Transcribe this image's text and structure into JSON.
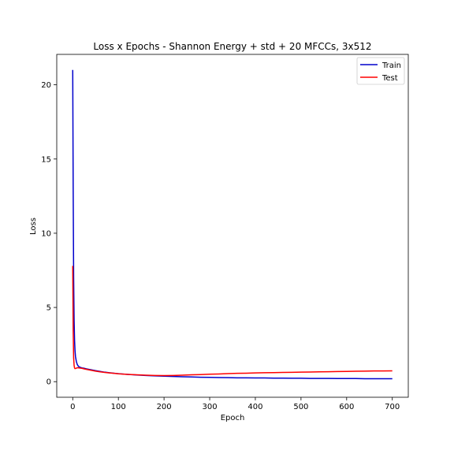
{
  "chart_data": {
    "type": "line",
    "title": "Loss x Epochs - Shannon Energy + std + 20 MFCCs, 3x512",
    "xlabel": "Epoch",
    "ylabel": "Loss",
    "xlim": [
      -35,
      735
    ],
    "ylim": [
      -1.05,
      22.05
    ],
    "xticks": [
      0,
      100,
      200,
      300,
      400,
      500,
      600,
      700
    ],
    "yticks": [
      0,
      5,
      10,
      15,
      20
    ],
    "grid": false,
    "legend": {
      "position": "top-right",
      "entries": [
        "Train",
        "Test"
      ]
    },
    "series": [
      {
        "name": "Train",
        "color": "#0000cc",
        "x": [
          0,
          1,
          2,
          3,
          4,
          5,
          6,
          8,
          10,
          13,
          16,
          20,
          25,
          30,
          40,
          50,
          60,
          70,
          80,
          90,
          100,
          120,
          140,
          160,
          180,
          200,
          220,
          240,
          260,
          280,
          300,
          320,
          340,
          360,
          380,
          400,
          420,
          440,
          460,
          480,
          500,
          520,
          540,
          560,
          580,
          600,
          620,
          640,
          660,
          680,
          700
        ],
        "y": [
          21.0,
          13.0,
          7.0,
          4.2,
          2.8,
          2.1,
          1.7,
          1.35,
          1.15,
          1.02,
          0.97,
          0.93,
          0.9,
          0.86,
          0.8,
          0.74,
          0.69,
          0.64,
          0.6,
          0.57,
          0.54,
          0.49,
          0.45,
          0.42,
          0.39,
          0.37,
          0.35,
          0.33,
          0.32,
          0.3,
          0.29,
          0.28,
          0.27,
          0.26,
          0.26,
          0.25,
          0.25,
          0.24,
          0.24,
          0.23,
          0.23,
          0.22,
          0.22,
          0.22,
          0.21,
          0.21,
          0.21,
          0.2,
          0.2,
          0.2,
          0.2
        ]
      },
      {
        "name": "Test",
        "color": "#ff0000",
        "x": [
          0,
          1,
          2,
          3,
          4,
          5,
          7,
          10,
          15,
          20,
          25,
          30,
          40,
          50,
          60,
          70,
          80,
          90,
          100,
          120,
          140,
          160,
          180,
          200,
          220,
          240,
          260,
          280,
          300,
          320,
          340,
          360,
          380,
          400,
          420,
          440,
          460,
          480,
          500,
          520,
          540,
          560,
          580,
          600,
          620,
          640,
          660,
          680,
          700
        ],
        "y": [
          7.8,
          3.5,
          1.6,
          1.1,
          0.92,
          0.88,
          0.9,
          0.94,
          0.92,
          0.9,
          0.86,
          0.83,
          0.77,
          0.71,
          0.66,
          0.62,
          0.59,
          0.56,
          0.53,
          0.49,
          0.46,
          0.44,
          0.42,
          0.41,
          0.42,
          0.44,
          0.46,
          0.48,
          0.5,
          0.52,
          0.54,
          0.56,
          0.57,
          0.59,
          0.6,
          0.61,
          0.62,
          0.63,
          0.64,
          0.65,
          0.66,
          0.67,
          0.68,
          0.69,
          0.7,
          0.71,
          0.72,
          0.72,
          0.73
        ]
      }
    ]
  }
}
